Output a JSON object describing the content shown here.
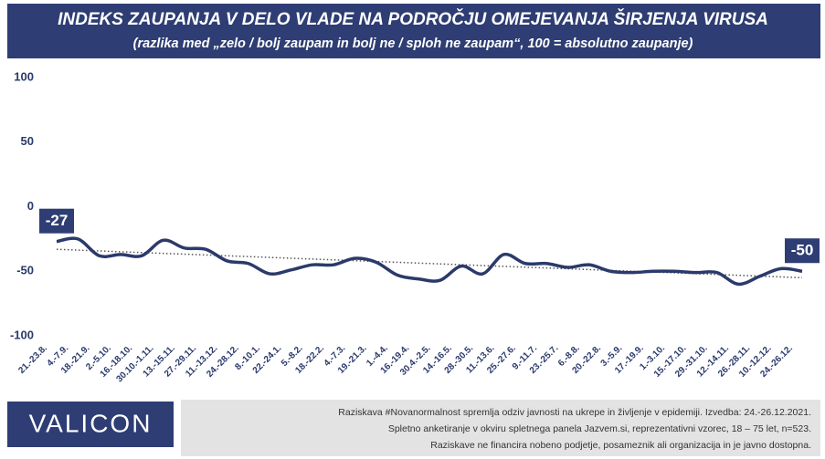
{
  "chart_data": {
    "type": "line",
    "title": "INDEKS ZAUPANJA V DELO VLADE NA PODROČJU OMEJEVANJA ŠIRJENJA VIRUSA",
    "subtitle": "(razlika med „zelo / bolj zaupam in bolj ne / sploh ne zaupam“, 100 = absolutno zaupanje)",
    "categories": [
      "21.-23.8.",
      "4.-7.9.",
      "18.-21.9.",
      "2.-5.10.",
      "16.-18.10.",
      "30.10.-1.11.",
      "13.-15.11.",
      "27.-29.11.",
      "11.-13.12.",
      "24.-28.12.",
      "8.-10.1.",
      "22.-24.1.",
      "5.-8.2.",
      "18.-22.2.",
      "4.-7.3.",
      "19.-21.3.",
      "1.-4.4.",
      "16.-19.4.",
      "30.4.-2.5.",
      "14.-16.5.",
      "28.-30.5.",
      "11.-13.6.",
      "25.-27.6.",
      "9.-11.7.",
      "23.-25.7.",
      "6.-8.8.",
      "20.-22.8.",
      "3.-5.9.",
      "17.-19.9.",
      "1.-3.10.",
      "15.-17.10.",
      "29.-31.10.",
      "12.-14.11.",
      "26.-28.11.",
      "10.-12.12.",
      "24.-26.12."
    ],
    "values": [
      -27,
      -25,
      -38,
      -37,
      -38,
      -26,
      -32,
      -33,
      -42,
      -44,
      -52,
      -49,
      -45,
      -45,
      -40,
      -43,
      -53,
      -56,
      -57,
      -46,
      -52,
      -37,
      -44,
      -44,
      -47,
      -45,
      -50,
      -51,
      -50,
      -50,
      -51,
      -51,
      -60,
      -54,
      -48,
      -50
    ],
    "color": "#2b3a6b",
    "trend": [
      -33,
      -55
    ],
    "ylim": [
      -100,
      100
    ],
    "yticks": [
      -100,
      -50,
      0,
      50,
      100
    ],
    "brand": "VALICON",
    "notes": [
      "Raziskava #Novanormalnost spremlja odziv javnosti na ukrepe in življenje v epidemiji. Izvedba: 24.-26.12.2021.",
      "Spletno anketiranje v okviru spletnega panela Jazvem.si, reprezentativni vzorec, 18 – 75 let, n=523.",
      "Raziskave ne financira nobeno podjetje, posameznik ali organizacija in je javno dostopna."
    ]
  }
}
